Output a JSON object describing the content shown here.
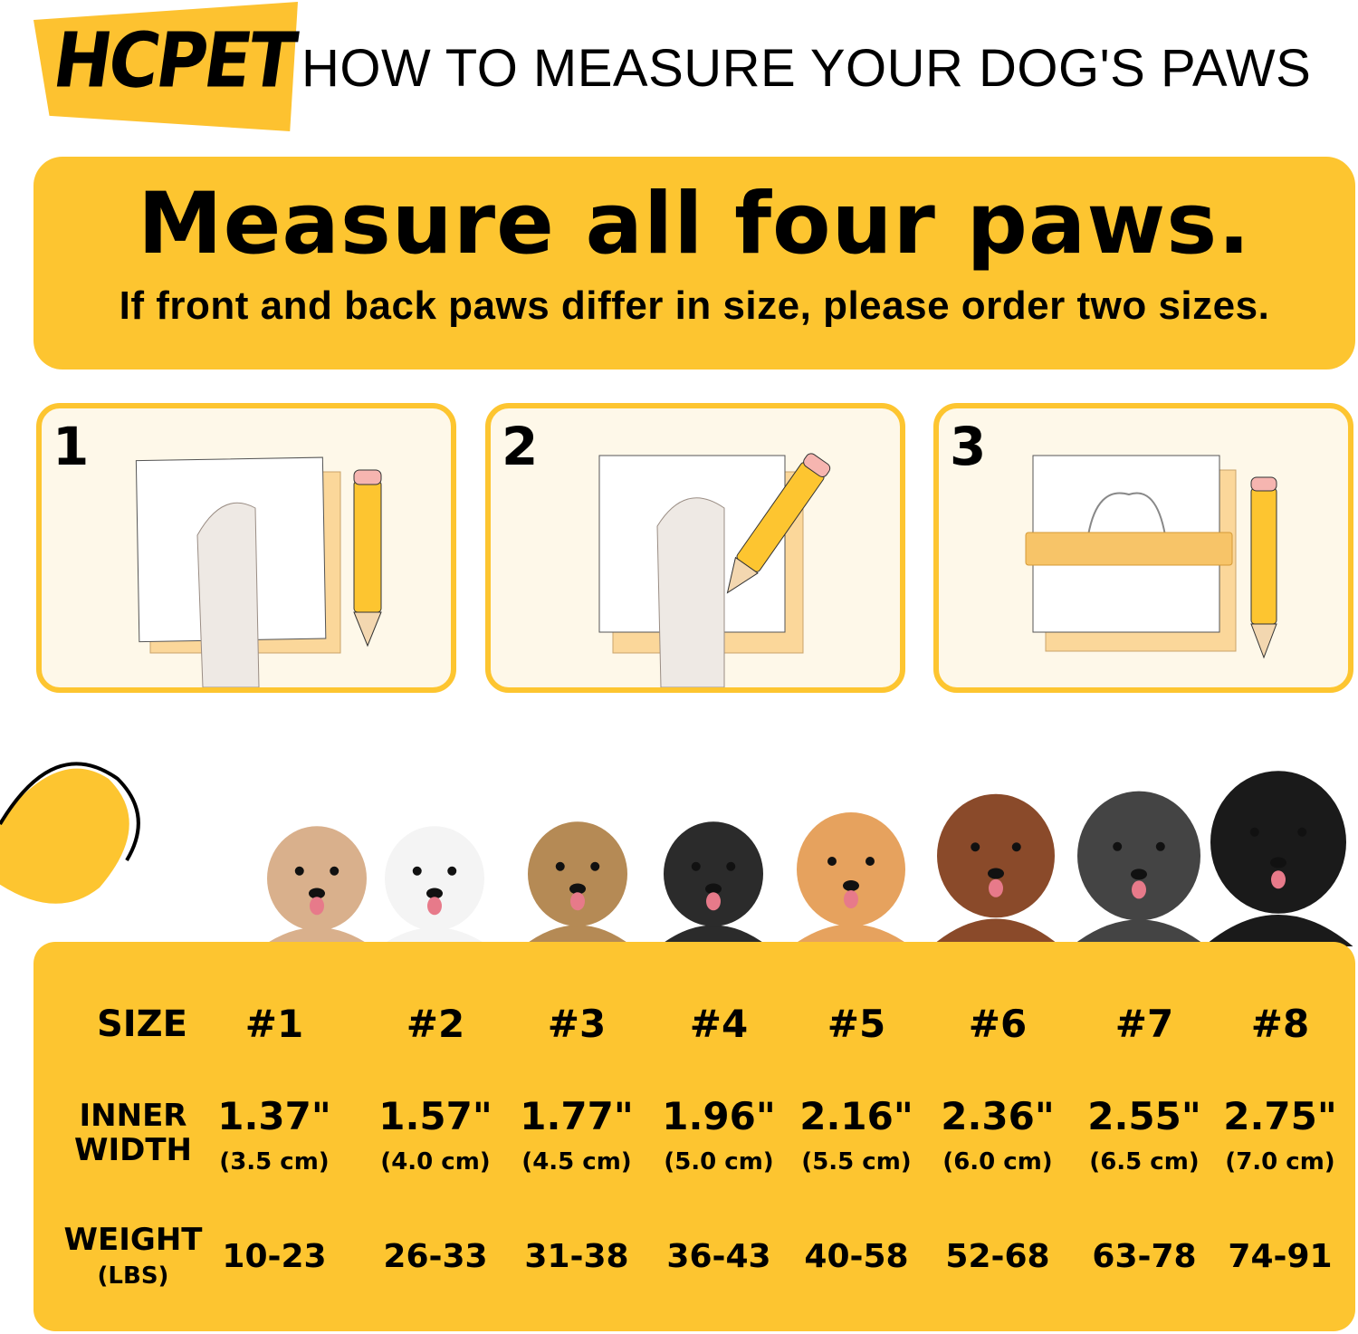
{
  "header": {
    "brand": "HCPET",
    "title": "HOW TO MEASURE YOUR DOG'S PAWS"
  },
  "banner": {
    "heading": "Measure all four paws.",
    "subheading": "If front and back paws differ in size, please order two sizes."
  },
  "steps": [
    {
      "number": "1"
    },
    {
      "number": "2"
    },
    {
      "number": "3"
    }
  ],
  "size_table": {
    "labels": {
      "size": "SIZE",
      "inner_width_1": "INNER",
      "inner_width_2": "WIDTH",
      "weight": "WEIGHT",
      "weight_unit": "(LBS)"
    },
    "sizes": [
      "#1",
      "#2",
      "#3",
      "#4",
      "#5",
      "#6",
      "#7",
      "#8"
    ],
    "inner_width_in": [
      "1.37\"",
      "1.57\"",
      "1.77\"",
      "1.96\"",
      "2.16\"",
      "2.36\"",
      "2.55\"",
      "2.75\""
    ],
    "inner_width_cm": [
      "(3.5 cm)",
      "(4.0 cm)",
      "(4.5 cm)",
      "(5.0 cm)",
      "(5.5 cm)",
      "(6.0 cm)",
      "(6.5 cm)",
      "(7.0 cm)"
    ],
    "weight": [
      "10-23",
      "26-33",
      "31-38",
      "36-43",
      "40-58",
      "52-68",
      "63-78",
      "74-91"
    ]
  },
  "colors": {
    "accent": "#fdc530",
    "panel_bg": "#fef8e9",
    "text": "#000000"
  }
}
